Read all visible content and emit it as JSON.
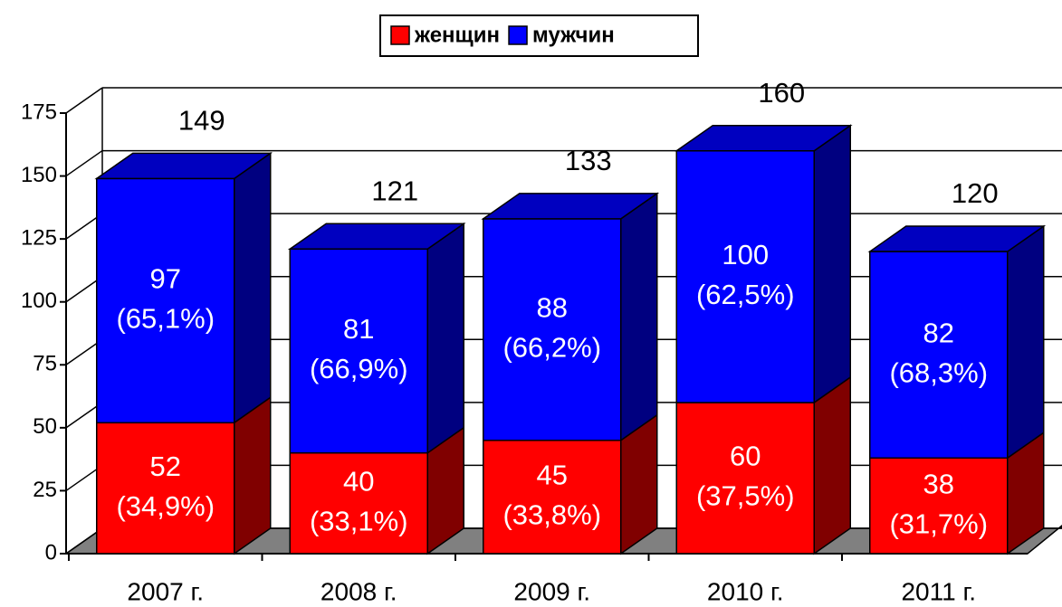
{
  "chart_data": {
    "type": "bar",
    "stacked": true,
    "categories": [
      "2007 г.",
      "2008 г.",
      "2009 г.",
      "2010 г.",
      "2011 г."
    ],
    "series": [
      {
        "name": "женщин",
        "color": "#ff0000",
        "side_color": "#800000",
        "values": [
          52,
          40,
          45,
          60,
          38
        ],
        "percent_labels": [
          "(34,9%)",
          "(33,1%)",
          "(33,8%)",
          "(37,5%)",
          "(31,7%)"
        ]
      },
      {
        "name": "мужчин",
        "color": "#0000ff",
        "side_color": "#000080",
        "values": [
          97,
          81,
          88,
          100,
          82
        ],
        "percent_labels": [
          "(65,1%)",
          "(66,9%)",
          "(66,2%)",
          "(62,5%)",
          "(68,3%)"
        ]
      }
    ],
    "totals": [
      149,
      121,
      133,
      160,
      120
    ],
    "ylim": [
      0,
      175
    ],
    "yticks": [
      0,
      25,
      50,
      75,
      100,
      125,
      150,
      175
    ],
    "grid": true,
    "legend": "top"
  }
}
